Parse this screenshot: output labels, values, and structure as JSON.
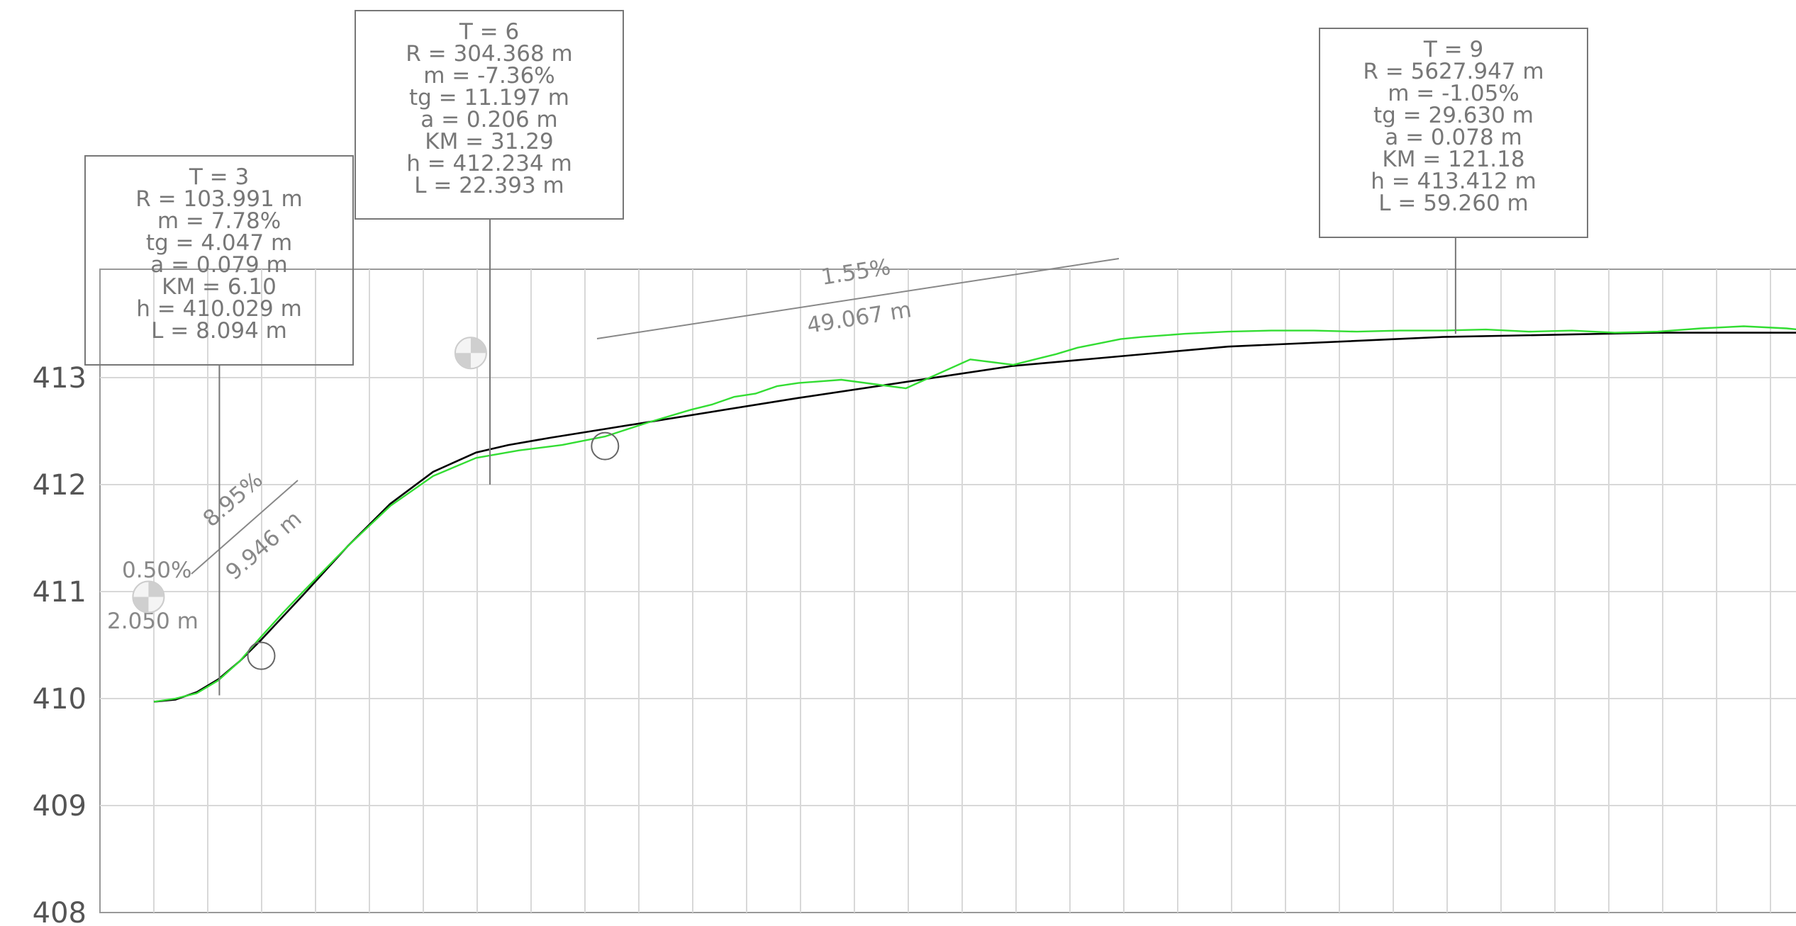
{
  "chart_data": {
    "type": "line",
    "title": "",
    "xlabel": "",
    "ylabel": "",
    "y_ticks": [
      "413",
      "412",
      "411",
      "410",
      "409",
      "408"
    ],
    "y_values": [
      413,
      412,
      411,
      410,
      409,
      408
    ],
    "ylim": [
      408,
      414.07
    ],
    "xlim": [
      -1.0,
      162.0
    ],
    "grid": true,
    "colors": {
      "terrain": "#33dd33",
      "design": "#000000",
      "grid": "#d8d8d8",
      "boxes": "#777777"
    },
    "series": [
      {
        "key": "design",
        "x": [
          0,
          2,
          4,
          6,
          8,
          10,
          14,
          18,
          22,
          26,
          30,
          33,
          37,
          42,
          60,
          80,
          100,
          120,
          140,
          158.4
        ],
        "y": [
          409.97,
          409.99,
          410.06,
          410.18,
          410.35,
          410.55,
          410.98,
          411.42,
          411.82,
          412.12,
          412.3,
          412.37,
          412.44,
          412.52,
          412.81,
          413.11,
          413.29,
          413.38,
          413.42,
          413.42
        ]
      },
      {
        "key": "terrain",
        "x": [
          0,
          2,
          4,
          6,
          8,
          10,
          12,
          14,
          18,
          22,
          26,
          30,
          34,
          38,
          42,
          46,
          50,
          52,
          54,
          56,
          58,
          60,
          64,
          70,
          76,
          80,
          82,
          84,
          86,
          88,
          90,
          92,
          96,
          100,
          104,
          108,
          112,
          116,
          120,
          124,
          128,
          132,
          136,
          140,
          144,
          148,
          152,
          155,
          158.4
        ],
        "y": [
          409.97,
          410.0,
          410.05,
          410.17,
          410.35,
          410.58,
          410.8,
          411.01,
          411.42,
          411.8,
          412.08,
          412.25,
          412.32,
          412.37,
          412.45,
          412.58,
          412.7,
          412.75,
          412.82,
          412.85,
          412.92,
          412.95,
          412.98,
          412.9,
          413.17,
          413.12,
          413.17,
          413.22,
          413.28,
          413.32,
          413.36,
          413.38,
          413.41,
          413.43,
          413.44,
          413.44,
          413.43,
          413.44,
          413.44,
          413.45,
          413.43,
          413.44,
          413.42,
          413.43,
          413.46,
          413.48,
          413.46,
          413.43,
          413.42
        ]
      }
    ],
    "vertices": [
      {
        "x": 10,
        "y": 410.4
      },
      {
        "x": 42,
        "y": 412.36
      },
      {
        "x": 158.4,
        "y": 413.42
      }
    ],
    "half_circles": [
      {
        "x": -0.5,
        "y": 410.95
      },
      {
        "x": 29.5,
        "y": 413.23
      }
    ],
    "curves": [
      {
        "T": "T = 3",
        "R": "R = 103.991 m",
        "m": "m = 7.78%",
        "tg": "tg = 4.047 m",
        "a": "a = 0.079 m",
        "KM": "KM = 6.10",
        "h": "h = 410.029 m",
        "L": "L = 8.094 m",
        "x": 6.1,
        "y": 410.03
      },
      {
        "T": "T = 6",
        "R": "R = 304.368 m",
        "m": "m = -7.36%",
        "tg": "tg = 11.197 m",
        "a": "a = 0.206 m",
        "KM": "KM = 31.29",
        "h": "h = 412.234 m",
        "L": "L = 22.393 m",
        "x": 31.29,
        "y": 412.0
      },
      {
        "T": "T = 9",
        "R": "R = 5627.947 m",
        "m": "m = -1.05%",
        "tg": "tg = 29.630 m",
        "a": "a = 0.078 m",
        "KM": "KM = 121.18",
        "h": "h = 413.412 m",
        "L": "L = 59.260 m",
        "x": 121.18,
        "y": 413.41
      }
    ],
    "segments": [
      {
        "grade": "0.50%",
        "length": "2.050 m"
      },
      {
        "grade": "8.95%",
        "length": "9.946 m"
      },
      {
        "grade": "1.55%",
        "length": "49.067 m"
      }
    ]
  }
}
